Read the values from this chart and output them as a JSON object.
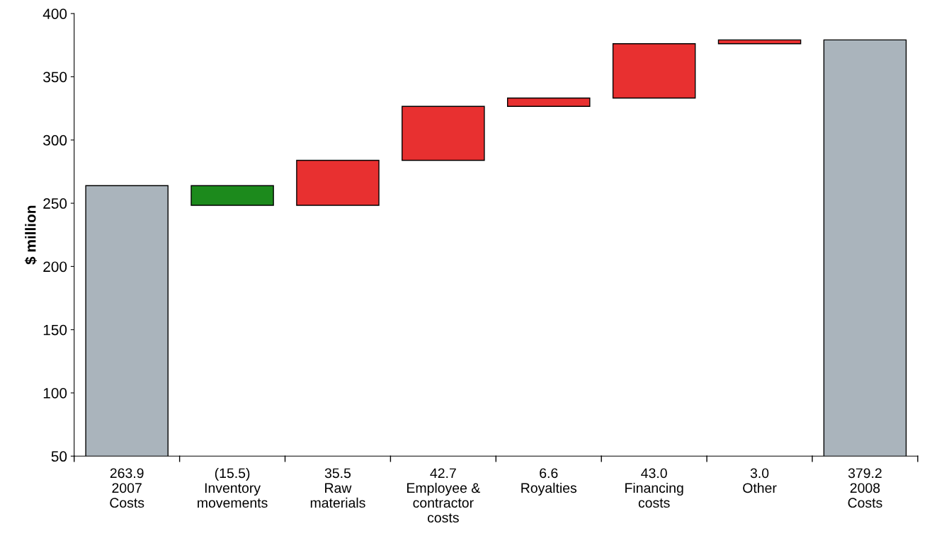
{
  "chart_data": {
    "type": "bar",
    "ylabel": "$ million",
    "categories": [
      "2007\nCosts",
      "Inventory\nmovements",
      "Raw\nmaterials",
      "Employee &\ncontractor\ncosts",
      "Royalties",
      "Financing\ncosts",
      "Other",
      "2008\nCosts"
    ],
    "values": [
      263.9,
      -15.5,
      35.5,
      42.7,
      6.6,
      43.0,
      3.0,
      379.2
    ],
    "base": [
      null,
      263.9,
      248.4,
      283.9,
      326.6,
      333.2,
      376.2,
      null
    ],
    "value_labels": [
      "263.9",
      "(15.5)",
      "35.5",
      "42.7",
      "6.6",
      "43.0",
      "3.0",
      "379.2"
    ],
    "colors": [
      "#aab4bc",
      "#1c8a1c",
      "#e83030",
      "#e83030",
      "#e83030",
      "#e83030",
      "#e83030",
      "#aab4bc"
    ],
    "ylim": [
      50,
      400
    ],
    "yticks": [
      50,
      100,
      150,
      200,
      250,
      300,
      350,
      400
    ],
    "grid": false,
    "legend": false
  }
}
